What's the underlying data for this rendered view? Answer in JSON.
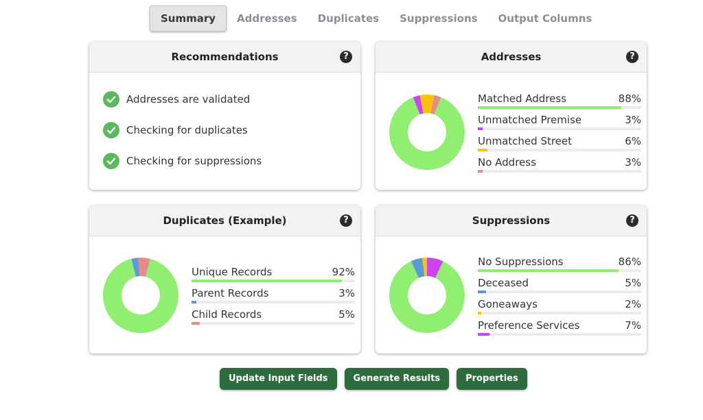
{
  "tabs": [
    {
      "label": "Summary",
      "active": true
    },
    {
      "label": "Addresses",
      "active": false
    },
    {
      "label": "Duplicates",
      "active": false
    },
    {
      "label": "Suppressions",
      "active": false
    },
    {
      "label": "Output Columns",
      "active": false
    }
  ],
  "recommendations": {
    "title": "Recommendations",
    "items": [
      "Addresses are validated",
      "Checking for duplicates",
      "Checking for suppressions"
    ]
  },
  "addresses": {
    "title": "Addresses",
    "rows": [
      {
        "label": "Matched Address",
        "value": "88%",
        "pct": 88,
        "color": "#90ee70"
      },
      {
        "label": "Unmatched Premise",
        "value": "3%",
        "pct": 3,
        "color": "#cc44ee"
      },
      {
        "label": "Unmatched Street",
        "value": "6%",
        "pct": 6,
        "color": "#ffc107"
      },
      {
        "label": "No Address",
        "value": "3%",
        "pct": 3,
        "color": "#e88a8a"
      }
    ]
  },
  "duplicates": {
    "title": "Duplicates (Example)",
    "rows": [
      {
        "label": "Unique Records",
        "value": "92%",
        "pct": 92,
        "color": "#90ee70"
      },
      {
        "label": "Parent Records",
        "value": "3%",
        "pct": 3,
        "color": "#5b9bd5"
      },
      {
        "label": "Child Records",
        "value": "5%",
        "pct": 5,
        "color": "#e88a8a"
      }
    ]
  },
  "suppressions": {
    "title": "Suppressions",
    "rows": [
      {
        "label": "No Suppressions",
        "value": "86%",
        "pct": 86,
        "color": "#90ee70"
      },
      {
        "label": "Deceased",
        "value": "5%",
        "pct": 5,
        "color": "#5b9bd5"
      },
      {
        "label": "Goneaways",
        "value": "2%",
        "pct": 2,
        "color": "#ffc107"
      },
      {
        "label": "Preference Services",
        "value": "7%",
        "pct": 7,
        "color": "#cc44ee"
      }
    ]
  },
  "help_glyph": "?",
  "buttons": {
    "update": "Update Input Fields",
    "generate": "Generate Results",
    "properties": "Properties"
  },
  "icons": {
    "check": "check-circle-icon",
    "help": "question-circle-icon"
  }
}
